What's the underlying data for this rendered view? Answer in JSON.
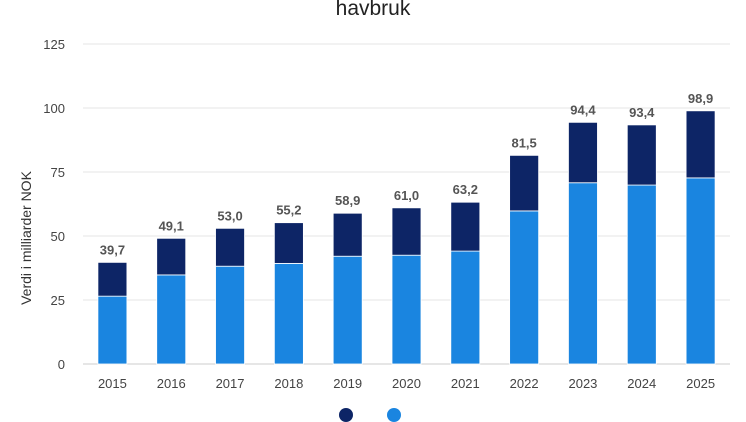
{
  "chart_data": {
    "type": "bar",
    "stacked": true,
    "title": "havbruk",
    "xlabel": "",
    "ylabel": "Verdi i milliarder NOK",
    "ylim": [
      0,
      125
    ],
    "yticks": [
      0,
      25,
      50,
      75,
      100,
      125
    ],
    "grid": true,
    "legend_position": "bottom",
    "categories": [
      "2015",
      "2016",
      "2017",
      "2018",
      "2019",
      "2020",
      "2021",
      "2022",
      "2023",
      "2024",
      "2025"
    ],
    "series": [
      {
        "name": "",
        "color": "#1a85e0",
        "values": [
          26.5,
          34.8,
          38.2,
          39.3,
          42.1,
          42.5,
          44.1,
          59.8,
          70.8,
          69.9,
          72.7
        ]
      },
      {
        "name": "",
        "color": "#0d2566",
        "values": [
          13.2,
          14.3,
          14.8,
          15.9,
          16.8,
          18.5,
          19.1,
          21.7,
          23.6,
          23.5,
          26.2
        ]
      }
    ],
    "total_labels": [
      "39,7",
      "49,1",
      "53,0",
      "55,2",
      "58,9",
      "61,0",
      "63,2",
      "81,5",
      "94,4",
      "93,4",
      "98,9"
    ],
    "totals": [
      39.7,
      49.1,
      53.0,
      55.2,
      58.9,
      61.0,
      63.2,
      81.5,
      94.4,
      93.4,
      98.9
    ]
  }
}
